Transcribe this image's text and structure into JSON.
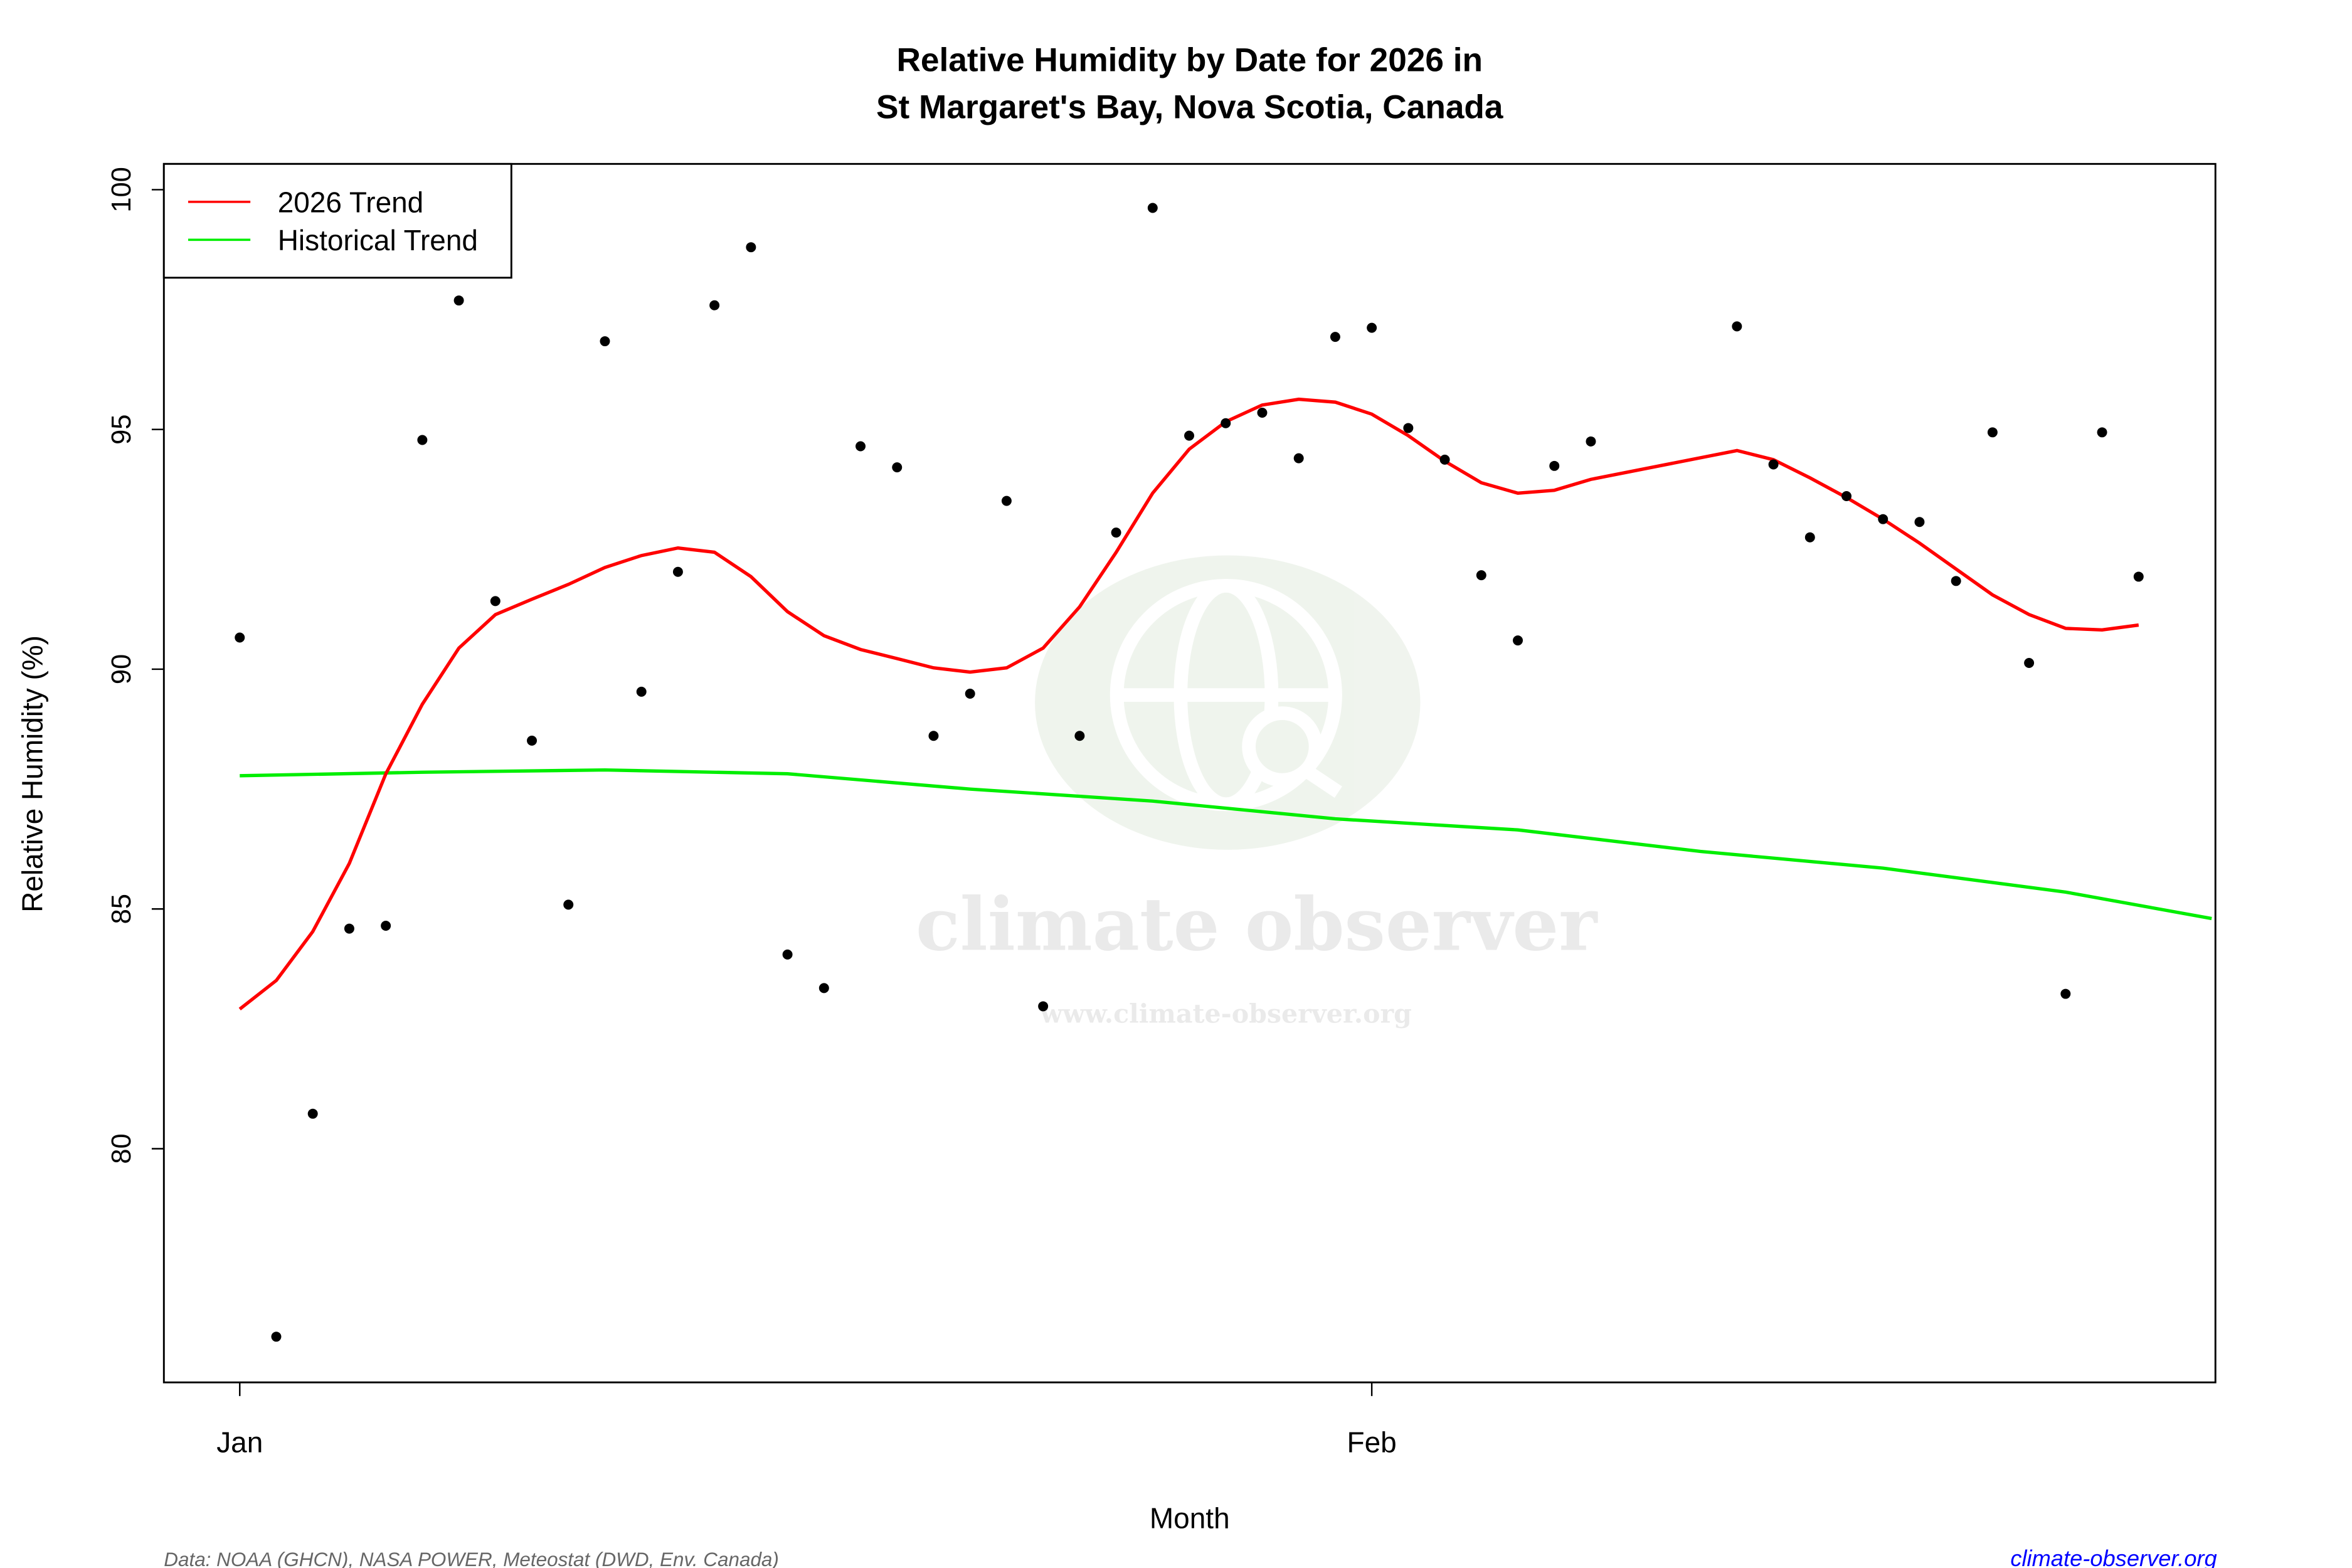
{
  "chart_data": {
    "type": "scatter",
    "title": "Relative Humidity by Date for 2026 in",
    "subtitle": "St Margaret's Bay, Nova Scotia, Canada",
    "xlabel": "Month",
    "ylabel": "Relative Humidity (%)",
    "xlim": [
      "2025-12-29.9",
      "2026-02-24.1"
    ],
    "ylim": [
      75.1,
      100.5
    ],
    "x_ticks": [
      {
        "date": "2026-01-01",
        "label": "Jan"
      },
      {
        "date": "2026-02-01",
        "label": "Feb"
      }
    ],
    "y_ticks": [
      80,
      85,
      90,
      95,
      100
    ],
    "grid": false,
    "legend_position": "top-left",
    "legend": [
      {
        "label": "2026 Trend",
        "color": "#ff0000"
      },
      {
        "label": "Historical Trend",
        "color": "#00ee00"
      }
    ],
    "points": {
      "color": "#000000",
      "x": [
        "2026-01-01",
        "2026-01-02",
        "2026-01-03",
        "2026-01-04",
        "2026-01-05",
        "2026-01-06",
        "2026-01-07",
        "2026-01-08",
        "2026-01-09",
        "2026-01-10",
        "2026-01-11",
        "2026-01-12",
        "2026-01-13",
        "2026-01-14",
        "2026-01-15",
        "2026-01-16",
        "2026-01-17",
        "2026-01-18",
        "2026-01-19",
        "2026-01-20",
        "2026-01-21",
        "2026-01-22",
        "2026-01-23",
        "2026-01-24",
        "2026-01-25",
        "2026-01-26",
        "2026-01-27",
        "2026-01-28",
        "2026-01-29",
        "2026-01-30",
        "2026-01-31",
        "2026-02-01",
        "2026-02-02",
        "2026-02-03",
        "2026-02-04",
        "2026-02-05",
        "2026-02-06",
        "2026-02-07",
        "2026-02-11",
        "2026-02-12",
        "2026-02-13",
        "2026-02-14",
        "2026-02-15",
        "2026-02-16",
        "2026-02-17",
        "2026-02-18",
        "2026-02-19",
        "2026-02-20",
        "2026-02-21",
        "2026-02-22"
      ],
      "y": [
        90.66,
        76.08,
        80.73,
        84.59,
        84.65,
        94.78,
        97.69,
        91.42,
        88.51,
        85.09,
        96.84,
        89.53,
        92.03,
        97.59,
        98.8,
        84.05,
        83.35,
        94.65,
        94.21,
        88.61,
        89.49,
        93.51,
        82.97,
        88.61,
        92.85,
        99.62,
        94.87,
        95.13,
        95.35,
        94.4,
        96.93,
        97.12,
        95.03,
        94.37,
        91.96,
        90.6,
        94.24,
        94.75,
        97.15,
        94.27,
        92.75,
        93.61,
        93.13,
        93.07,
        91.84,
        94.94,
        90.13,
        83.23,
        94.94,
        91.93
      ]
    },
    "series": [
      {
        "name": "2026 Trend",
        "color": "#ff0000",
        "x": [
          "2026-01-01",
          "2026-01-02",
          "2026-01-03",
          "2026-01-04",
          "2026-01-05",
          "2026-01-06",
          "2026-01-07",
          "2026-01-08",
          "2026-01-09",
          "2026-01-10",
          "2026-01-11",
          "2026-01-12",
          "2026-01-13",
          "2026-01-14",
          "2026-01-15",
          "2026-01-16",
          "2026-01-17",
          "2026-01-18",
          "2026-01-19",
          "2026-01-20",
          "2026-01-21",
          "2026-01-22",
          "2026-01-23",
          "2026-01-24",
          "2026-01-25",
          "2026-01-26",
          "2026-01-27",
          "2026-01-28",
          "2026-01-29",
          "2026-01-30",
          "2026-01-31",
          "2026-02-01",
          "2026-02-02",
          "2026-02-03",
          "2026-02-04",
          "2026-02-05",
          "2026-02-06",
          "2026-02-07",
          "2026-02-11",
          "2026-02-12",
          "2026-02-13",
          "2026-02-14",
          "2026-02-15",
          "2026-02-16",
          "2026-02-17",
          "2026-02-18",
          "2026-02-19",
          "2026-02-20",
          "2026-02-21",
          "2026-02-22"
        ],
        "y": [
          82.91,
          83.51,
          84.53,
          85.95,
          87.82,
          89.27,
          90.44,
          91.14,
          91.46,
          91.77,
          92.12,
          92.37,
          92.53,
          92.44,
          91.93,
          91.2,
          90.7,
          90.41,
          90.22,
          90.03,
          89.94,
          90.03,
          90.44,
          91.3,
          92.44,
          93.67,
          94.59,
          95.16,
          95.51,
          95.63,
          95.57,
          95.32,
          94.87,
          94.34,
          93.89,
          93.67,
          93.73,
          93.96,
          94.56,
          94.37,
          93.99,
          93.58,
          93.13,
          92.63,
          92.09,
          91.55,
          91.14,
          90.85,
          90.82,
          90.92
        ]
      },
      {
        "name": "Historical Trend",
        "color": "#00ee00",
        "x": [
          "2026-01-01",
          "2026-01-06",
          "2026-01-11",
          "2026-01-16",
          "2026-01-21",
          "2026-01-26",
          "2026-01-31",
          "2026-02-05",
          "2026-02-10",
          "2026-02-15",
          "2026-02-20",
          "2026-02-24"
        ],
        "y": [
          87.78,
          87.85,
          87.9,
          87.82,
          87.5,
          87.25,
          86.88,
          86.65,
          86.2,
          85.85,
          85.35,
          84.8
        ]
      }
    ]
  },
  "watermark": {
    "name": "climate observer",
    "url": "www.climate-observer.org"
  },
  "footer": {
    "source": "Data: NOAA (GHCN), NASA POWER, Meteostat (DWD, Env. Canada)",
    "site": "climate-observer.org",
    "site_color": "#0000ff"
  }
}
